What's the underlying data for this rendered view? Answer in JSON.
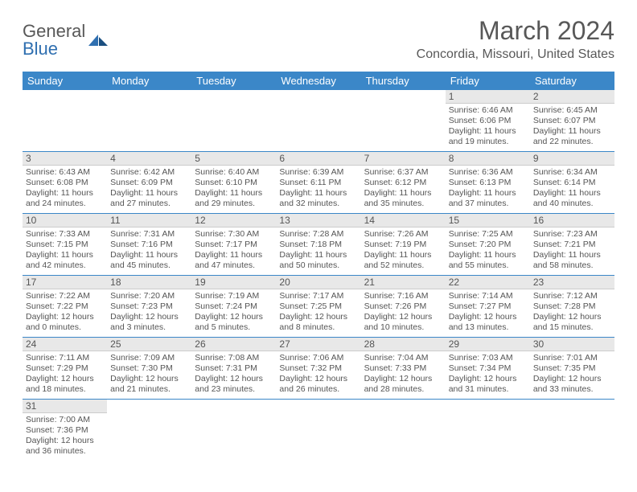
{
  "logo": {
    "textDark": "General",
    "textBlue": "Blue"
  },
  "title": "March 2024",
  "location": "Concordia, Missouri, United States",
  "weekdays": [
    "Sunday",
    "Monday",
    "Tuesday",
    "Wednesday",
    "Thursday",
    "Friday",
    "Saturday"
  ],
  "colors": {
    "headerBg": "#3b87c8",
    "headerText": "#ffffff",
    "dayNumBg": "#e8e8e8",
    "rowDivider": "#3b87c8",
    "bodyText": "#555555",
    "titleText": "#585858"
  },
  "weeks": [
    [
      null,
      null,
      null,
      null,
      null,
      {
        "n": "1",
        "sunrise": "Sunrise: 6:46 AM",
        "sunset": "Sunset: 6:06 PM",
        "daylight": "Daylight: 11 hours and 19 minutes."
      },
      {
        "n": "2",
        "sunrise": "Sunrise: 6:45 AM",
        "sunset": "Sunset: 6:07 PM",
        "daylight": "Daylight: 11 hours and 22 minutes."
      }
    ],
    [
      {
        "n": "3",
        "sunrise": "Sunrise: 6:43 AM",
        "sunset": "Sunset: 6:08 PM",
        "daylight": "Daylight: 11 hours and 24 minutes."
      },
      {
        "n": "4",
        "sunrise": "Sunrise: 6:42 AM",
        "sunset": "Sunset: 6:09 PM",
        "daylight": "Daylight: 11 hours and 27 minutes."
      },
      {
        "n": "5",
        "sunrise": "Sunrise: 6:40 AM",
        "sunset": "Sunset: 6:10 PM",
        "daylight": "Daylight: 11 hours and 29 minutes."
      },
      {
        "n": "6",
        "sunrise": "Sunrise: 6:39 AM",
        "sunset": "Sunset: 6:11 PM",
        "daylight": "Daylight: 11 hours and 32 minutes."
      },
      {
        "n": "7",
        "sunrise": "Sunrise: 6:37 AM",
        "sunset": "Sunset: 6:12 PM",
        "daylight": "Daylight: 11 hours and 35 minutes."
      },
      {
        "n": "8",
        "sunrise": "Sunrise: 6:36 AM",
        "sunset": "Sunset: 6:13 PM",
        "daylight": "Daylight: 11 hours and 37 minutes."
      },
      {
        "n": "9",
        "sunrise": "Sunrise: 6:34 AM",
        "sunset": "Sunset: 6:14 PM",
        "daylight": "Daylight: 11 hours and 40 minutes."
      }
    ],
    [
      {
        "n": "10",
        "sunrise": "Sunrise: 7:33 AM",
        "sunset": "Sunset: 7:15 PM",
        "daylight": "Daylight: 11 hours and 42 minutes."
      },
      {
        "n": "11",
        "sunrise": "Sunrise: 7:31 AM",
        "sunset": "Sunset: 7:16 PM",
        "daylight": "Daylight: 11 hours and 45 minutes."
      },
      {
        "n": "12",
        "sunrise": "Sunrise: 7:30 AM",
        "sunset": "Sunset: 7:17 PM",
        "daylight": "Daylight: 11 hours and 47 minutes."
      },
      {
        "n": "13",
        "sunrise": "Sunrise: 7:28 AM",
        "sunset": "Sunset: 7:18 PM",
        "daylight": "Daylight: 11 hours and 50 minutes."
      },
      {
        "n": "14",
        "sunrise": "Sunrise: 7:26 AM",
        "sunset": "Sunset: 7:19 PM",
        "daylight": "Daylight: 11 hours and 52 minutes."
      },
      {
        "n": "15",
        "sunrise": "Sunrise: 7:25 AM",
        "sunset": "Sunset: 7:20 PM",
        "daylight": "Daylight: 11 hours and 55 minutes."
      },
      {
        "n": "16",
        "sunrise": "Sunrise: 7:23 AM",
        "sunset": "Sunset: 7:21 PM",
        "daylight": "Daylight: 11 hours and 58 minutes."
      }
    ],
    [
      {
        "n": "17",
        "sunrise": "Sunrise: 7:22 AM",
        "sunset": "Sunset: 7:22 PM",
        "daylight": "Daylight: 12 hours and 0 minutes."
      },
      {
        "n": "18",
        "sunrise": "Sunrise: 7:20 AM",
        "sunset": "Sunset: 7:23 PM",
        "daylight": "Daylight: 12 hours and 3 minutes."
      },
      {
        "n": "19",
        "sunrise": "Sunrise: 7:19 AM",
        "sunset": "Sunset: 7:24 PM",
        "daylight": "Daylight: 12 hours and 5 minutes."
      },
      {
        "n": "20",
        "sunrise": "Sunrise: 7:17 AM",
        "sunset": "Sunset: 7:25 PM",
        "daylight": "Daylight: 12 hours and 8 minutes."
      },
      {
        "n": "21",
        "sunrise": "Sunrise: 7:16 AM",
        "sunset": "Sunset: 7:26 PM",
        "daylight": "Daylight: 12 hours and 10 minutes."
      },
      {
        "n": "22",
        "sunrise": "Sunrise: 7:14 AM",
        "sunset": "Sunset: 7:27 PM",
        "daylight": "Daylight: 12 hours and 13 minutes."
      },
      {
        "n": "23",
        "sunrise": "Sunrise: 7:12 AM",
        "sunset": "Sunset: 7:28 PM",
        "daylight": "Daylight: 12 hours and 15 minutes."
      }
    ],
    [
      {
        "n": "24",
        "sunrise": "Sunrise: 7:11 AM",
        "sunset": "Sunset: 7:29 PM",
        "daylight": "Daylight: 12 hours and 18 minutes."
      },
      {
        "n": "25",
        "sunrise": "Sunrise: 7:09 AM",
        "sunset": "Sunset: 7:30 PM",
        "daylight": "Daylight: 12 hours and 21 minutes."
      },
      {
        "n": "26",
        "sunrise": "Sunrise: 7:08 AM",
        "sunset": "Sunset: 7:31 PM",
        "daylight": "Daylight: 12 hours and 23 minutes."
      },
      {
        "n": "27",
        "sunrise": "Sunrise: 7:06 AM",
        "sunset": "Sunset: 7:32 PM",
        "daylight": "Daylight: 12 hours and 26 minutes."
      },
      {
        "n": "28",
        "sunrise": "Sunrise: 7:04 AM",
        "sunset": "Sunset: 7:33 PM",
        "daylight": "Daylight: 12 hours and 28 minutes."
      },
      {
        "n": "29",
        "sunrise": "Sunrise: 7:03 AM",
        "sunset": "Sunset: 7:34 PM",
        "daylight": "Daylight: 12 hours and 31 minutes."
      },
      {
        "n": "30",
        "sunrise": "Sunrise: 7:01 AM",
        "sunset": "Sunset: 7:35 PM",
        "daylight": "Daylight: 12 hours and 33 minutes."
      }
    ],
    [
      {
        "n": "31",
        "sunrise": "Sunrise: 7:00 AM",
        "sunset": "Sunset: 7:36 PM",
        "daylight": "Daylight: 12 hours and 36 minutes."
      },
      null,
      null,
      null,
      null,
      null,
      null
    ]
  ]
}
